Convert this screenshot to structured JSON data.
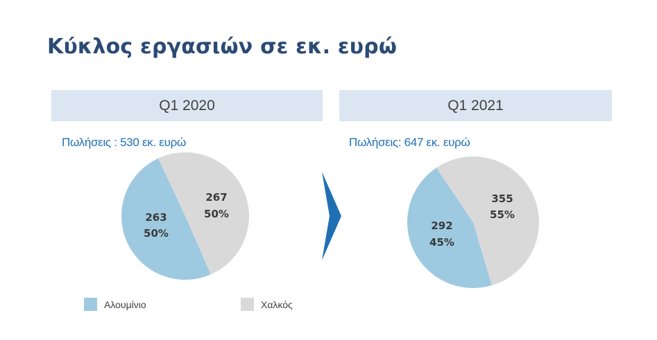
{
  "title": "Κύκλος εργασιών σε εκ. ευρώ",
  "colors": {
    "aluminium": "#9ecae1",
    "copper": "#d9d9d9",
    "header_bg": "#dce6f2",
    "chevron": "#1f6fb5"
  },
  "panels": [
    {
      "header": "Q1 2020",
      "sales_label": "Πωλήσεις : 530 εκ. ευρώ"
    },
    {
      "header": "Q1 2021",
      "sales_label": "Πωλήσεις: 647 εκ. ευρώ"
    }
  ],
  "legend": [
    "Αλουμίνιο",
    "Χαλκός"
  ],
  "chart_data": [
    {
      "type": "pie",
      "title": "Q1 2020",
      "subtitle": "Πωλήσεις : 530 εκ. ευρώ",
      "legend_position": "bottom",
      "slices": [
        {
          "name": "Αλουμίνιο",
          "value": 263,
          "value_label": "263",
          "percent_label": "50%"
        },
        {
          "name": "Χαλκός",
          "value": 267,
          "value_label": "267",
          "percent_label": "50%"
        }
      ]
    },
    {
      "type": "pie",
      "title": "Q1 2021",
      "subtitle": "Πωλήσεις: 647 εκ. ευρώ",
      "legend_position": "bottom",
      "slices": [
        {
          "name": "Αλουμίνιο",
          "value": 292,
          "value_label": "292",
          "percent_label": "45%"
        },
        {
          "name": "Χαλκός",
          "value": 355,
          "value_label": "355",
          "percent_label": "55%"
        }
      ]
    }
  ]
}
